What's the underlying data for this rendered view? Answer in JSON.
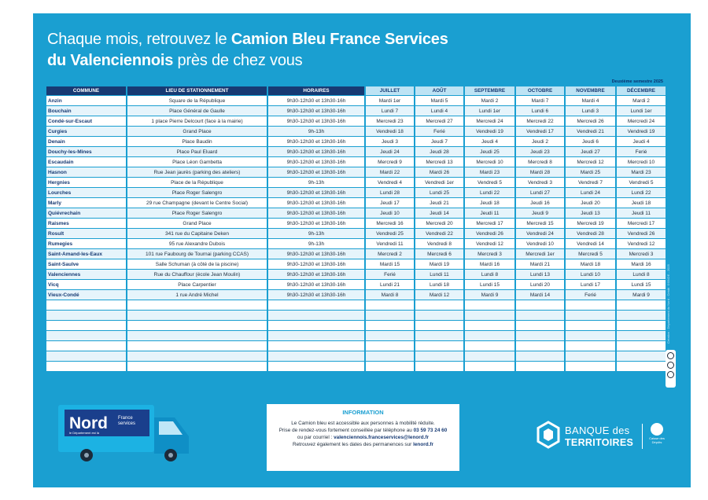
{
  "title": {
    "line1_normal": "Chaque mois, retrouvez le ",
    "line1_bold": "Camion Bleu France Services",
    "line2_bold": "du Valenciennois",
    "line2_normal": " près de chez vous"
  },
  "semester_label": "Deuxième semestre 2025",
  "table": {
    "headers": [
      "COMMUNE",
      "LIEU DE STATIONNEMENT",
      "HORAIRES",
      "JUILLET",
      "AOÛT",
      "SEPTEMBRE",
      "OCTOBRE",
      "NOVEMBRE",
      "DÉCEMBRE"
    ],
    "rows": [
      [
        "Anzin",
        "Square de la République",
        "9h30-12h30 et 13h30-16h",
        "Mardi 1er",
        "Mardi 5",
        "Mardi 2",
        "Mardi 7",
        "Mardi 4",
        "Mardi 2"
      ],
      [
        "Bouchain",
        "Place Général de Gaulle",
        "9h30-12h30 et 13h30-16h",
        "Lundi 7",
        "Lundi 4",
        "Lundi 1er",
        "Lundi 6",
        "Lundi 3",
        "Lundi 1er"
      ],
      [
        "Condé-sur-Escaut",
        "1 place Pierre Delcourt (face à la mairie)",
        "9h30-12h30 et 13h30-16h",
        "Mercredi 23",
        "Mercredi 27",
        "Mercredi 24",
        "Mercredi 22",
        "Mercredi 26",
        "Mercredi 24"
      ],
      [
        "Curgies",
        "Grand Place",
        "9h-13h",
        "Vendredi 18",
        "Ferié",
        "Vendredi 19",
        "Vendredi 17",
        "Vendredi 21",
        "Vendredi 19"
      ],
      [
        "Denain",
        "Place Baudin",
        "9h30-12h30 et 13h30-16h",
        "Jeudi 3",
        "Jeudi 7",
        "Jeudi 4",
        "Jeudi 2",
        "Jeudi 6",
        "Jeudi 4"
      ],
      [
        "Douchy-les-Mines",
        "Place Paul Eluard",
        "9h30-12h30 et 13h30-16h",
        "Jeudi 24",
        "Jeudi 28",
        "Jeudi 25",
        "Jeudi 23",
        "Jeudi 27",
        "Ferié"
      ],
      [
        "Escaudain",
        "Place Léon Gambetta",
        "9h30-12h30 et 13h30-16h",
        "Mercredi 9",
        "Mercredi 13",
        "Mercredi 10",
        "Mercredi 8",
        "Mercredi 12",
        "Mercredi 10"
      ],
      [
        "Hasnon",
        "Rue Jean jaurès (parking des ateliers)",
        "9h30-12h30 et 13h30-16h",
        "Mardi 22",
        "Mardi 26",
        "Mardi 23",
        "Mardi 28",
        "Mardi 25",
        "Mardi 23"
      ],
      [
        "Hergnies",
        "Place de la République",
        "9h-13h",
        "Vendredi 4",
        "Vendredi 1er",
        "Vendredi 5",
        "Vendredi 3",
        "Vendredi 7",
        "Vendredi 5"
      ],
      [
        "Lourches",
        "Place Roger Salengro",
        "9h30-12h30 et 13h30-16h",
        "Lundi 28",
        "Lundi 25",
        "Lundi 22",
        "Lundi 27",
        "Lundi 24",
        "Lundi 22"
      ],
      [
        "Marly",
        "29 rue Champagne (devant le Centre Social)",
        "9h30-12h30 et 13h30-16h",
        "Jeudi 17",
        "Jeudi 21",
        "Jeudi 18",
        "Jeudi 16",
        "Jeudi 20",
        "Jeudi 18"
      ],
      [
        "Quiévrechain",
        "Place Roger Salengro",
        "9h30-12h30 et 13h30-16h",
        "Jeudi 10",
        "Jeudi 14",
        "Jeudi 11",
        "Jeudi 9",
        "Jeudi 13",
        "Jeudi 11"
      ],
      [
        "Raismes",
        "Grand Place",
        "9h30-12h30 et 13h30-16h",
        "Mercredi 16",
        "Mercredi  20",
        "Mercredi 17",
        "Mercredi 15",
        "Mercredi 19",
        "Mercredi 17"
      ],
      [
        "Rosult",
        "341 rue du Capitaine Deken",
        "9h-13h",
        "Vendredi 25",
        "Vendredi 22",
        "Vendredi 26",
        "Vendredi 24",
        "Vendredi 28",
        "Vendredi 26"
      ],
      [
        "Rumegies",
        "95 rue Alexandre Dubois",
        "9h-13h",
        "Vendredi 11",
        "Vendredi 8",
        "Vendredi 12",
        "Vendredi 10",
        "Vendredi 14",
        "Vendredi 12"
      ],
      [
        "Saint-Amand-les-Eaux",
        "101 rue Faubourg de Tournai (parking CCAS)",
        "9h30-12h30 et 13h30-16h",
        "Mercredi 2",
        "Mercredi 6",
        "Mercredi 3",
        "Mercredi 1er",
        "Mercredi 5",
        "Mercredi 3"
      ],
      [
        "Saint-Saulve",
        "Salle Schuman (à côté de la piscine)",
        "9h30-12h30 et 13h30-16h",
        "Mardi 15",
        "Mardi 19",
        "Mardi 16",
        "Mardi 21",
        "Mardi 18",
        "Mardi 16"
      ],
      [
        "Valenciennes",
        "Rue du Chauffour (école Jean Moulin)",
        "9h30-12h30 et 13h30-16h",
        "Ferié",
        "Lundi 11",
        "Lundi 8",
        "Lundi 13",
        "Lundi 10",
        "Lundi 8"
      ],
      [
        "Vicq",
        "Place Carpentier",
        "9h30-12h30 et 13h30-16h",
        "Lundi 21",
        "Lundi 18",
        "Lundi 15",
        "Lundi 20",
        "Lundi 17",
        "Lundi 15"
      ],
      [
        "Vieux-Condé",
        "1 rue André Michel",
        "9h30-12h30 et 13h30-16h",
        "Mardi 8",
        "Mardi 12",
        "Mardi 9",
        "Mardi 14",
        "Ferié",
        "Mardi 9"
      ]
    ],
    "empty_row_count": 7
  },
  "side_credit": "Création : Département du Nord - Crédit ©BNDE - 2025",
  "truck": {
    "brand": "Nord",
    "tagline": "le Département est là",
    "label_line1": "France",
    "label_line2": "services",
    "colors": {
      "body": "#1cb2e3",
      "cab": "#0f8fc6",
      "panel": "#1a3f8c",
      "wheel": "#1c2a3a"
    }
  },
  "info": {
    "heading": "INFORMATION",
    "line1": "Le Camion bleu est accessible aux personnes à mobilité réduite.",
    "line2_text": "Prise de rendez-vous fortement conseillée par téléphone au ",
    "line2_phone": "03 59 73 24 60",
    "line3_text": "ou par courriel : ",
    "line3_email": "valenciennois.franceservices@lenord.fr",
    "line4_text": "Retrouvez également les dates des permanences sur ",
    "line4_site": "lenord.fr"
  },
  "bdt": {
    "line1": "BANQUE des",
    "line2": "TERRITOIRES",
    "cdc_text": "Caisse des Dépôts"
  },
  "colors": {
    "background": "#1a9fd1",
    "header_dark": "#173a73",
    "header_light": "#bde3f4",
    "row_alt": "#e6f4fb"
  }
}
